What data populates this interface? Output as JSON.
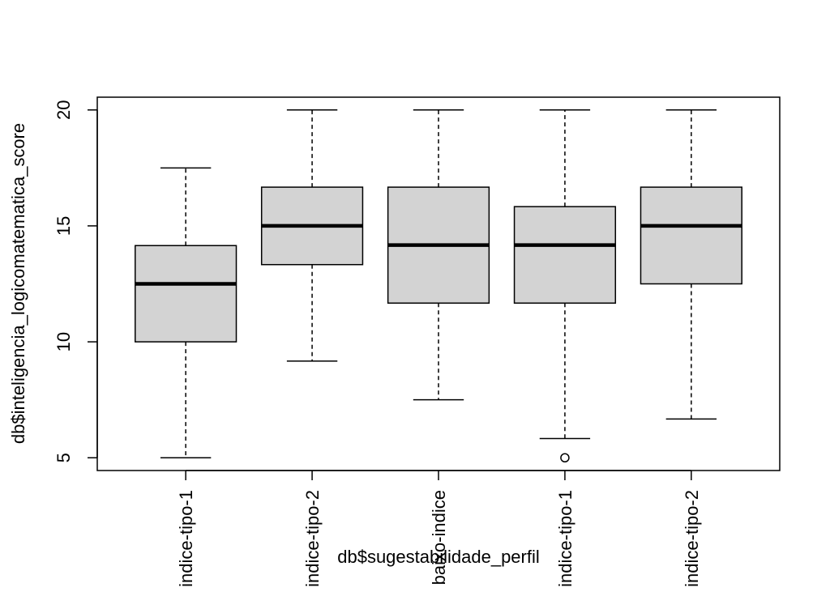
{
  "chart_data": {
    "type": "box",
    "title": "",
    "xlabel": "db$sugestabilidade_perfil",
    "ylabel": "db$inteligencia_logicomatematica_score",
    "ylim": [
      4.45,
      20.55
    ],
    "yticks": [
      5,
      10,
      15,
      20
    ],
    "grid": false,
    "box_fill": "#d3d3d3",
    "categories": [
      "indice-tipo-1",
      "indice-tipo-2",
      "baixo-indice",
      "indice-tipo-1",
      "indice-tipo-2"
    ],
    "series": [
      {
        "min": 5.0,
        "q1": 10.0,
        "median": 12.5,
        "q3": 14.15,
        "max": 17.5,
        "outliers": []
      },
      {
        "min": 9.17,
        "q1": 13.33,
        "median": 15.0,
        "q3": 16.67,
        "max": 20.0,
        "outliers": []
      },
      {
        "min": 7.5,
        "q1": 11.67,
        "median": 14.17,
        "q3": 16.67,
        "max": 20.0,
        "outliers": []
      },
      {
        "min": 5.83,
        "q1": 11.67,
        "median": 14.17,
        "q3": 15.83,
        "max": 20.0,
        "outliers": [
          5.0
        ]
      },
      {
        "min": 6.67,
        "q1": 12.5,
        "median": 15.0,
        "q3": 16.67,
        "max": 20.0,
        "outliers": []
      }
    ]
  }
}
